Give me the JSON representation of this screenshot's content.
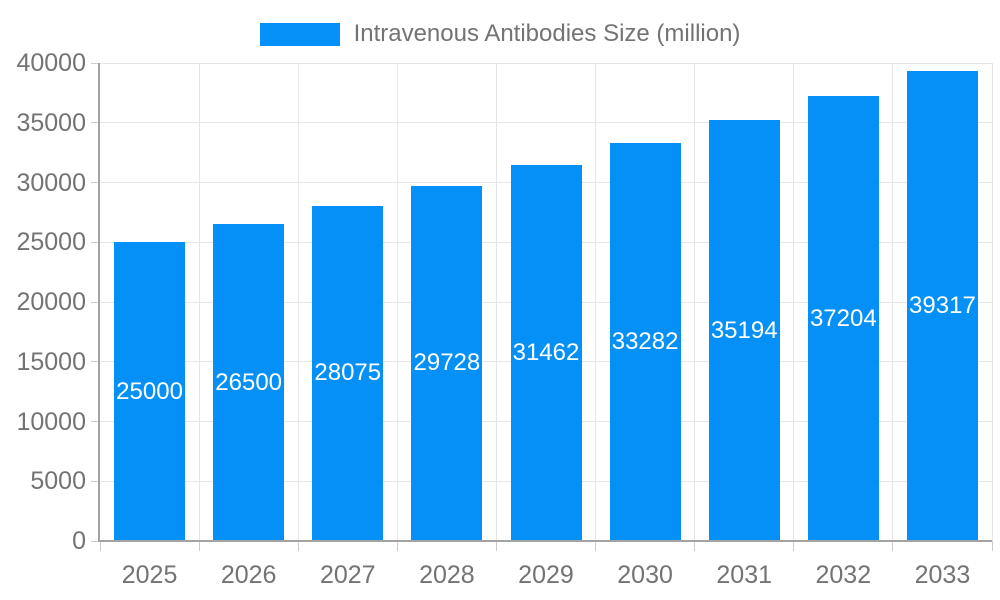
{
  "chart_data": {
    "type": "bar",
    "title": "",
    "categories": [
      "2025",
      "2026",
      "2027",
      "2028",
      "2029",
      "2030",
      "2031",
      "2032",
      "2033"
    ],
    "series": [
      {
        "name": "Intravenous Antibodies Size (million)",
        "values": [
          25000,
          26500,
          28075,
          29728,
          31462,
          33282,
          35194,
          37204,
          39317
        ]
      }
    ],
    "value_labels": [
      "25000",
      "26500",
      "28075",
      "29728",
      "31462",
      "33282",
      "35194",
      "37204",
      "39317"
    ],
    "xlabel": "",
    "ylabel": "",
    "ylim": [
      0,
      40000
    ],
    "ytick_step": 5000,
    "ytick_labels": [
      "0",
      "5000",
      "10000",
      "15000",
      "20000",
      "25000",
      "30000",
      "35000",
      "40000"
    ],
    "grid": true,
    "legend_position": "top-center",
    "colors": {
      "bar": "#0590f8",
      "value_label_text": "#ffffff",
      "axis_text": "#737373",
      "grid_line": "#e6e6e6",
      "axis_line": "#a3a3a3",
      "tick_line": "#cccccc",
      "background": "#ffffff"
    }
  }
}
